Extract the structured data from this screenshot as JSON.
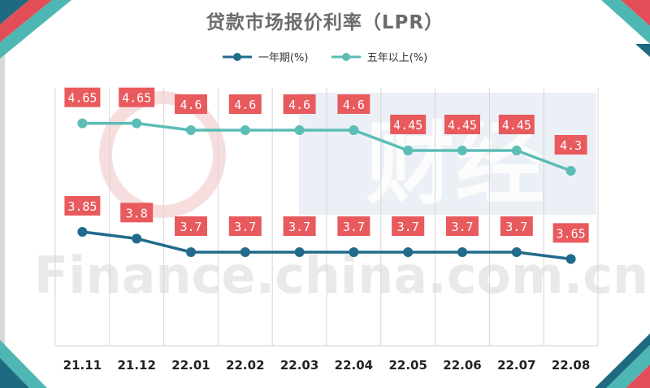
{
  "chart_data": {
    "type": "line",
    "title": "贷款市场报价利率（LPR）",
    "categories": [
      "21.11",
      "21.12",
      "22.01",
      "22.02",
      "22.03",
      "22.04",
      "22.05",
      "22.06",
      "22.07",
      "22.08"
    ],
    "series": [
      {
        "name": "一年期",
        "unit": "(%)",
        "color": "#216b8c",
        "values": [
          3.85,
          3.8,
          3.7,
          3.7,
          3.7,
          3.7,
          3.7,
          3.7,
          3.7,
          3.65
        ],
        "labels": [
          "3.85",
          "3.8",
          "3.7",
          "3.7",
          "3.7",
          "3.7",
          "3.7",
          "3.7",
          "3.7",
          "3.65"
        ]
      },
      {
        "name": "五年以上",
        "unit": "(%)",
        "color": "#5bbdb5",
        "values": [
          4.65,
          4.65,
          4.6,
          4.6,
          4.6,
          4.6,
          4.45,
          4.45,
          4.45,
          4.3
        ],
        "labels": [
          "4.65",
          "4.65",
          "4.6",
          "4.6",
          "4.6",
          "4.6",
          "4.45",
          "4.45",
          "4.45",
          "4.3"
        ]
      }
    ],
    "grid": "vertical",
    "legend_position": "top",
    "label_color": "#e85a5d",
    "xlabel": "",
    "ylabel": ""
  },
  "watermark": {
    "text": "Finance.china.com.cn",
    "logo_text": "中国财经"
  },
  "theme": {
    "corner_dark": "#1e6a80",
    "corner_teal": "#4fb7b3",
    "corner_red": "#e24e57"
  }
}
